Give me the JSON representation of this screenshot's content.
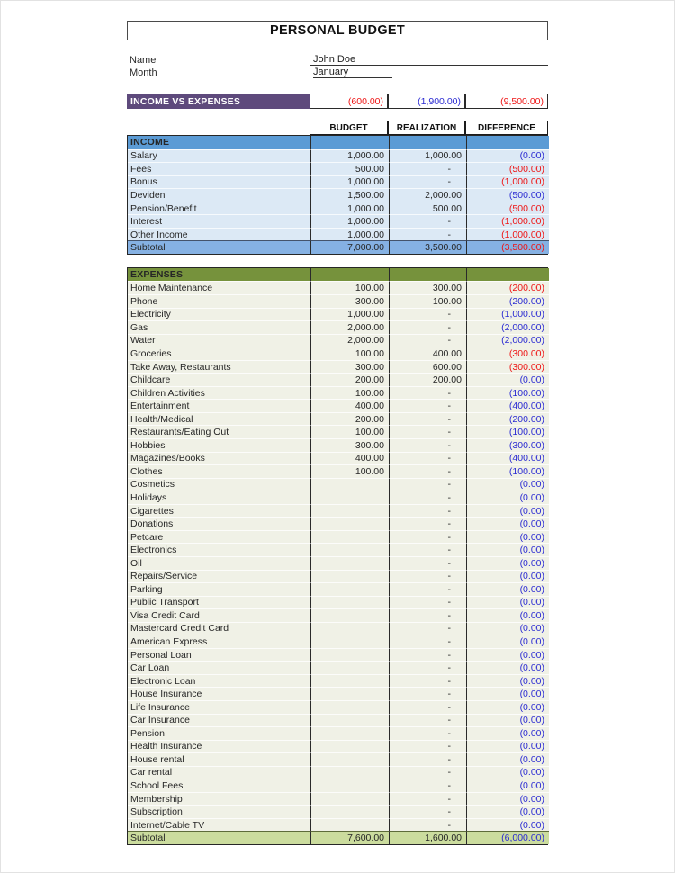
{
  "page": {
    "title": "PERSONAL BUDGET",
    "name_label": "Name",
    "name_value": "John Doe",
    "month_label": "Month",
    "month_value": "January"
  },
  "summary": {
    "label": "INCOME VS EXPENSES",
    "values": [
      {
        "text": "(600.00)",
        "color": "red"
      },
      {
        "text": "(1,900.00)",
        "color": "blue"
      },
      {
        "text": "(9,500.00)",
        "color": "red"
      }
    ]
  },
  "columns": [
    "BUDGET",
    "REALIZATION",
    "DIFFERENCE"
  ],
  "income": {
    "header": "INCOME",
    "rows": [
      {
        "label": "Salary",
        "budget": "1,000.00",
        "realization": "1,000.00",
        "difference": "(0.00)",
        "diff_color": "blue"
      },
      {
        "label": "Fees",
        "budget": "500.00",
        "realization": "-",
        "difference": "(500.00)",
        "diff_color": "red"
      },
      {
        "label": "Bonus",
        "budget": "1,000.00",
        "realization": "-",
        "difference": "(1,000.00)",
        "diff_color": "red"
      },
      {
        "label": "Deviden",
        "budget": "1,500.00",
        "realization": "2,000.00",
        "difference": "(500.00)",
        "diff_color": "blue"
      },
      {
        "label": "Pension/Benefit",
        "budget": "1,000.00",
        "realization": "500.00",
        "difference": "(500.00)",
        "diff_color": "red"
      },
      {
        "label": "Interest",
        "budget": "1,000.00",
        "realization": "-",
        "difference": "(1,000.00)",
        "diff_color": "red"
      },
      {
        "label": "Other Income",
        "budget": "1,000.00",
        "realization": "-",
        "difference": "(1,000.00)",
        "diff_color": "red"
      }
    ],
    "subtotal": {
      "label": "Subtotal",
      "budget": "7,000.00",
      "realization": "3,500.00",
      "difference": "(3,500.00)",
      "diff_color": "red"
    }
  },
  "expenses": {
    "header": "EXPENSES",
    "rows": [
      {
        "label": "Home Maintenance",
        "budget": "100.00",
        "realization": "300.00",
        "difference": "(200.00)",
        "diff_color": "red"
      },
      {
        "label": "Phone",
        "budget": "300.00",
        "realization": "100.00",
        "difference": "(200.00)",
        "diff_color": "blue"
      },
      {
        "label": "Electricity",
        "budget": "1,000.00",
        "realization": "-",
        "difference": "(1,000.00)",
        "diff_color": "blue"
      },
      {
        "label": "Gas",
        "budget": "2,000.00",
        "realization": "-",
        "difference": "(2,000.00)",
        "diff_color": "blue"
      },
      {
        "label": "Water",
        "budget": "2,000.00",
        "realization": "-",
        "difference": "(2,000.00)",
        "diff_color": "blue"
      },
      {
        "label": "Groceries",
        "budget": "100.00",
        "realization": "400.00",
        "difference": "(300.00)",
        "diff_color": "red"
      },
      {
        "label": "Take Away, Restaurants",
        "budget": "300.00",
        "realization": "600.00",
        "difference": "(300.00)",
        "diff_color": "red"
      },
      {
        "label": "Childcare",
        "budget": "200.00",
        "realization": "200.00",
        "difference": "(0.00)",
        "diff_color": "blue"
      },
      {
        "label": "Children Activities",
        "budget": "100.00",
        "realization": "-",
        "difference": "(100.00)",
        "diff_color": "blue"
      },
      {
        "label": "Entertainment",
        "budget": "400.00",
        "realization": "-",
        "difference": "(400.00)",
        "diff_color": "blue"
      },
      {
        "label": "Health/Medical",
        "budget": "200.00",
        "realization": "-",
        "difference": "(200.00)",
        "diff_color": "blue"
      },
      {
        "label": "Restaurants/Eating Out",
        "budget": "100.00",
        "realization": "-",
        "difference": "(100.00)",
        "diff_color": "blue"
      },
      {
        "label": "Hobbies",
        "budget": "300.00",
        "realization": "-",
        "difference": "(300.00)",
        "diff_color": "blue"
      },
      {
        "label": "Magazines/Books",
        "budget": "400.00",
        "realization": "-",
        "difference": "(400.00)",
        "diff_color": "blue"
      },
      {
        "label": "Clothes",
        "budget": "100.00",
        "realization": "-",
        "difference": "(100.00)",
        "diff_color": "blue"
      },
      {
        "label": "Cosmetics",
        "budget": "",
        "realization": "-",
        "difference": "(0.00)",
        "diff_color": "blue"
      },
      {
        "label": "Holidays",
        "budget": "",
        "realization": "-",
        "difference": "(0.00)",
        "diff_color": "blue"
      },
      {
        "label": "Cigarettes",
        "budget": "",
        "realization": "-",
        "difference": "(0.00)",
        "diff_color": "blue"
      },
      {
        "label": "Donations",
        "budget": "",
        "realization": "-",
        "difference": "(0.00)",
        "diff_color": "blue"
      },
      {
        "label": "Petcare",
        "budget": "",
        "realization": "-",
        "difference": "(0.00)",
        "diff_color": "blue"
      },
      {
        "label": "Electronics",
        "budget": "",
        "realization": "-",
        "difference": "(0.00)",
        "diff_color": "blue"
      },
      {
        "label": "Oil",
        "budget": "",
        "realization": "-",
        "difference": "(0.00)",
        "diff_color": "blue"
      },
      {
        "label": "Repairs/Service",
        "budget": "",
        "realization": "-",
        "difference": "(0.00)",
        "diff_color": "blue"
      },
      {
        "label": "Parking",
        "budget": "",
        "realization": "-",
        "difference": "(0.00)",
        "diff_color": "blue"
      },
      {
        "label": "Public Transport",
        "budget": "",
        "realization": "-",
        "difference": "(0.00)",
        "diff_color": "blue"
      },
      {
        "label": "Visa Credit Card",
        "budget": "",
        "realization": "-",
        "difference": "(0.00)",
        "diff_color": "blue"
      },
      {
        "label": "Mastercard Credit Card",
        "budget": "",
        "realization": "-",
        "difference": "(0.00)",
        "diff_color": "blue"
      },
      {
        "label": "American Express",
        "budget": "",
        "realization": "-",
        "difference": "(0.00)",
        "diff_color": "blue"
      },
      {
        "label": "Personal Loan",
        "budget": "",
        "realization": "-",
        "difference": "(0.00)",
        "diff_color": "blue"
      },
      {
        "label": "Car Loan",
        "budget": "",
        "realization": "-",
        "difference": "(0.00)",
        "diff_color": "blue"
      },
      {
        "label": "Electronic Loan",
        "budget": "",
        "realization": "-",
        "difference": "(0.00)",
        "diff_color": "blue"
      },
      {
        "label": "House Insurance",
        "budget": "",
        "realization": "-",
        "difference": "(0.00)",
        "diff_color": "blue"
      },
      {
        "label": "Life Insurance",
        "budget": "",
        "realization": "-",
        "difference": "(0.00)",
        "diff_color": "blue"
      },
      {
        "label": "Car Insurance",
        "budget": "",
        "realization": "-",
        "difference": "(0.00)",
        "diff_color": "blue"
      },
      {
        "label": "Pension",
        "budget": "",
        "realization": "-",
        "difference": "(0.00)",
        "diff_color": "blue"
      },
      {
        "label": "Health Insurance",
        "budget": "",
        "realization": "-",
        "difference": "(0.00)",
        "diff_color": "blue"
      },
      {
        "label": "House rental",
        "budget": "",
        "realization": "-",
        "difference": "(0.00)",
        "diff_color": "blue"
      },
      {
        "label": "Car rental",
        "budget": "",
        "realization": "-",
        "difference": "(0.00)",
        "diff_color": "blue"
      },
      {
        "label": "School Fees",
        "budget": "",
        "realization": "-",
        "difference": "(0.00)",
        "diff_color": "blue"
      },
      {
        "label": "Membership",
        "budget": "",
        "realization": "-",
        "difference": "(0.00)",
        "diff_color": "blue"
      },
      {
        "label": "Subscription",
        "budget": "",
        "realization": "-",
        "difference": "(0.00)",
        "diff_color": "blue"
      },
      {
        "label": "Internet/Cable TV",
        "budget": "",
        "realization": "-",
        "difference": "(0.00)",
        "diff_color": "blue"
      }
    ],
    "subtotal": {
      "label": "Subtotal",
      "budget": "7,600.00",
      "realization": "1,600.00",
      "difference": "(6,000.00)",
      "diff_color": "blue"
    }
  },
  "colors": {
    "accent_purple": "#5e4a7c",
    "income_header_blue": "#5b9bd5",
    "income_row_blue": "#dce9f5",
    "income_subtotal_blue": "#85b1e3",
    "expenses_header_green": "#76923c",
    "expenses_row_cream": "#f0f1e6",
    "expenses_subtotal_green": "#cbdc9e",
    "negative_red": "#ee1515",
    "positive_blue": "#2b2bd2"
  }
}
